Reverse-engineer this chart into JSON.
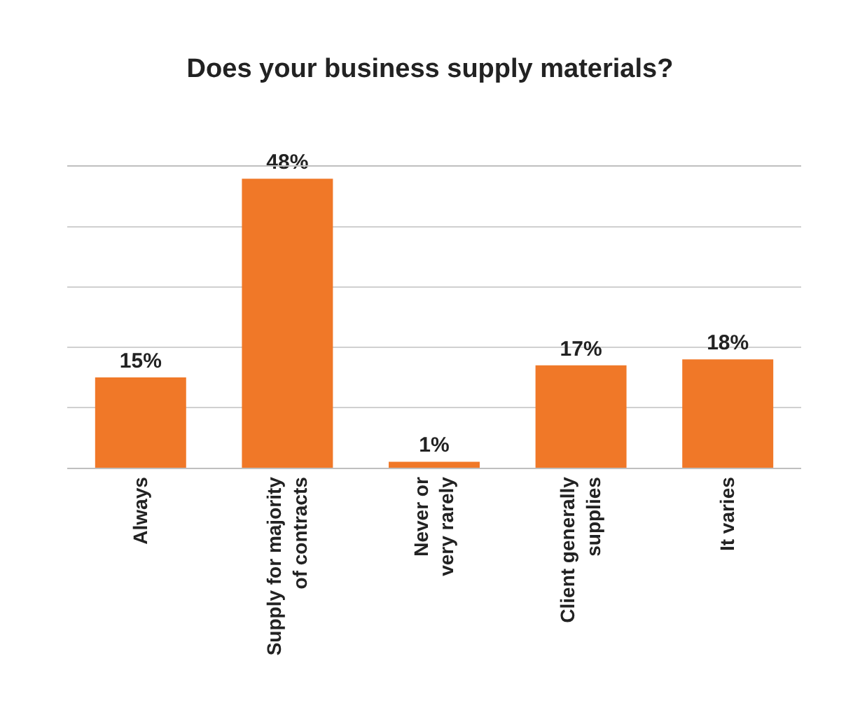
{
  "chart_data": {
    "type": "bar",
    "title": "Does your business supply materials?",
    "categories": [
      "Always",
      "Supply for majority\nof contracts",
      "Never or\nvery rarely",
      "Client generally\nsupplies",
      "It varies"
    ],
    "values": [
      15,
      48,
      1,
      17,
      18
    ],
    "value_labels": [
      "15%",
      "48%",
      "1%",
      "17%",
      "18%"
    ],
    "color": "#f07828",
    "ylim": [
      0,
      50
    ],
    "yticks": [
      {
        "value": 0,
        "label": null
      },
      {
        "value": 10,
        "label": null
      },
      {
        "value": 20,
        "label": null
      },
      {
        "value": 30,
        "label": null
      },
      {
        "value": 40,
        "label": null
      },
      {
        "value": 50,
        "label": null
      }
    ],
    "grid": "y",
    "tick_labels": "x",
    "legend": false
  }
}
